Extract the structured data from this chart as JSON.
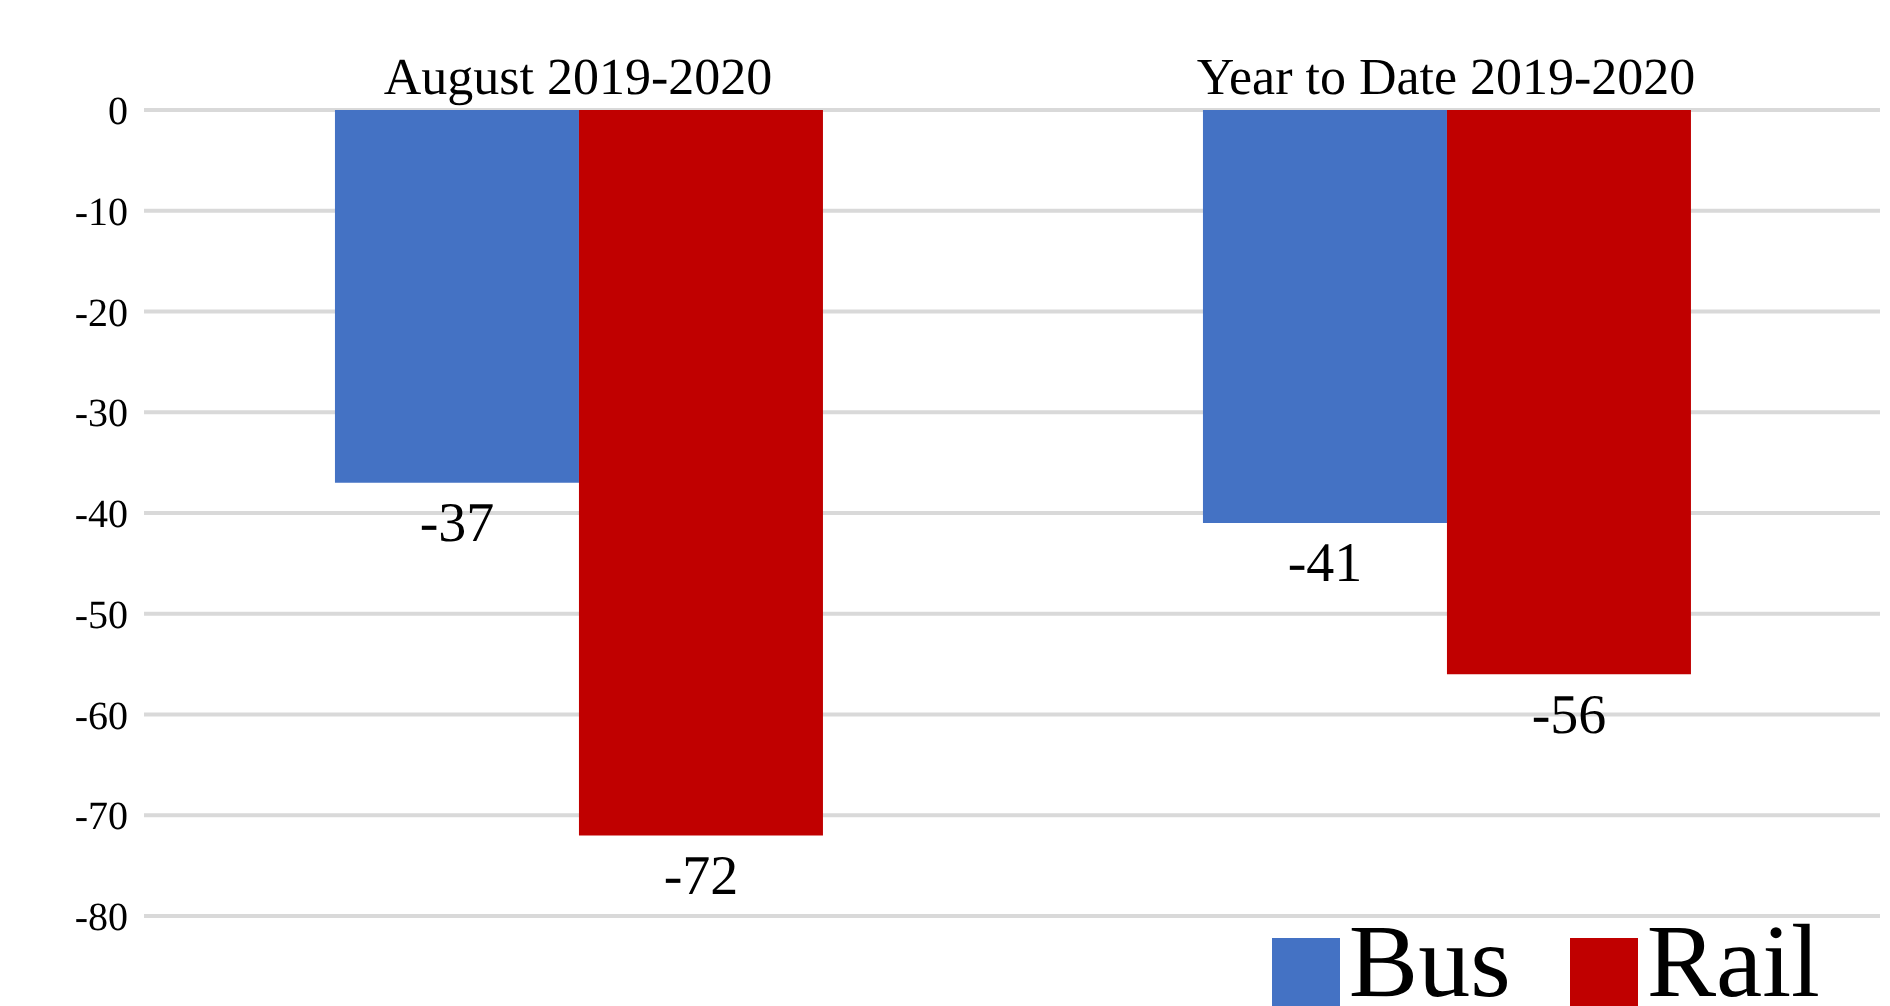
{
  "chart_data": {
    "type": "bar",
    "categories": [
      "August 2019-2020",
      "Year to Date 2019-2020"
    ],
    "series": [
      {
        "name": "Bus",
        "color": "#4472c4",
        "values": [
          -37,
          -41
        ]
      },
      {
        "name": "Rail",
        "color": "#c00000",
        "values": [
          -72,
          -56
        ]
      }
    ],
    "ylim": [
      -80,
      0
    ],
    "yticks": [
      0,
      -10,
      -20,
      -30,
      -40,
      -50,
      -60,
      -70,
      -80
    ],
    "grid": "y",
    "legend": "bottom right",
    "data_labels": true
  }
}
